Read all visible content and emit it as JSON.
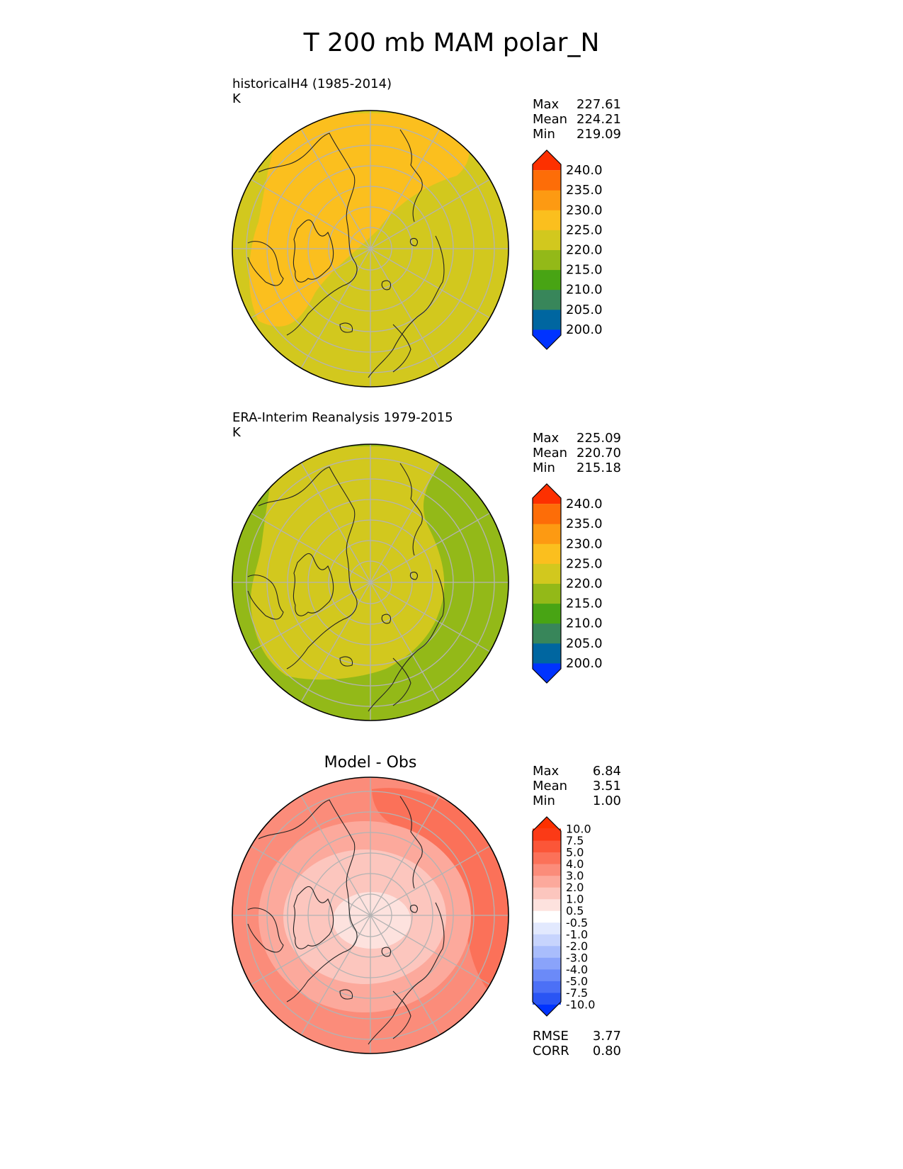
{
  "title": "T 200 mb MAM polar_N",
  "panels": [
    {
      "label": "historicalH4 (1985-2014)",
      "units": "K",
      "stats": [
        {
          "key": "Max",
          "value": "227.61"
        },
        {
          "key": "Mean",
          "value": "224.21"
        },
        {
          "key": "Min",
          "value": "219.09"
        }
      ],
      "colorbar": {
        "colors": [
          "#0033ff",
          "#0066a0",
          "#38865a",
          "#48a414",
          "#93b918",
          "#d2c81e",
          "#fbbf1e",
          "#fd9a12",
          "#fd6d08",
          "#fd3000"
        ],
        "ticks": [
          "240.0",
          "235.0",
          "230.0",
          "225.0",
          "220.0",
          "215.0",
          "210.0",
          "205.0",
          "200.0"
        ]
      },
      "map_colors": {
        "base": "#d2c81e",
        "warm": "#fbbf1e"
      }
    },
    {
      "label": "ERA-Interim Reanalysis 1979-2015",
      "units": "K",
      "stats": [
        {
          "key": "Max",
          "value": "225.09"
        },
        {
          "key": "Mean",
          "value": "220.70"
        },
        {
          "key": "Min",
          "value": "215.18"
        }
      ],
      "colorbar": {
        "colors": [
          "#0033ff",
          "#0066a0",
          "#38865a",
          "#48a414",
          "#93b918",
          "#d2c81e",
          "#fbbf1e",
          "#fd9a12",
          "#fd6d08",
          "#fd3000"
        ],
        "ticks": [
          "240.0",
          "235.0",
          "230.0",
          "225.0",
          "220.0",
          "215.0",
          "210.0",
          "205.0",
          "200.0"
        ]
      },
      "map_colors": {
        "base": "#93b918",
        "warm": "#d2c81e"
      }
    },
    {
      "title": "Model - Obs",
      "stats": [
        {
          "key": "Max",
          "value": "6.84"
        },
        {
          "key": "Mean",
          "value": "3.51"
        },
        {
          "key": "Min",
          "value": "1.00"
        }
      ],
      "colorbar": {
        "colors": [
          "#0033ff",
          "#2a55f4",
          "#4c70f6",
          "#6b8af8",
          "#8aa3fa",
          "#a9bdfc",
          "#c7d4fd",
          "#e2e9fe",
          "#ffffff",
          "#fde2de",
          "#fcc6be",
          "#fca99c",
          "#fb8c7a",
          "#fb7159",
          "#fb5638",
          "#fb3a16",
          "#fd3000"
        ],
        "ticks": [
          "10.0",
          "7.5",
          "5.0",
          "4.0",
          "3.0",
          "2.0",
          "1.0",
          "0.5",
          "-0.5",
          "-1.0",
          "-2.0",
          "-3.0",
          "-4.0",
          "-5.0",
          "-7.5",
          "-10.0"
        ]
      },
      "map_colors": {
        "outer": "#fb8c7a",
        "strong": "#fb7159",
        "mid": "#fca99c",
        "inner": "#fcc6be",
        "core": "#fde2de"
      },
      "extra_stats": [
        {
          "key": "RMSE",
          "value": "3.77"
        },
        {
          "key": "CORR",
          "value": "0.80"
        }
      ]
    }
  ]
}
